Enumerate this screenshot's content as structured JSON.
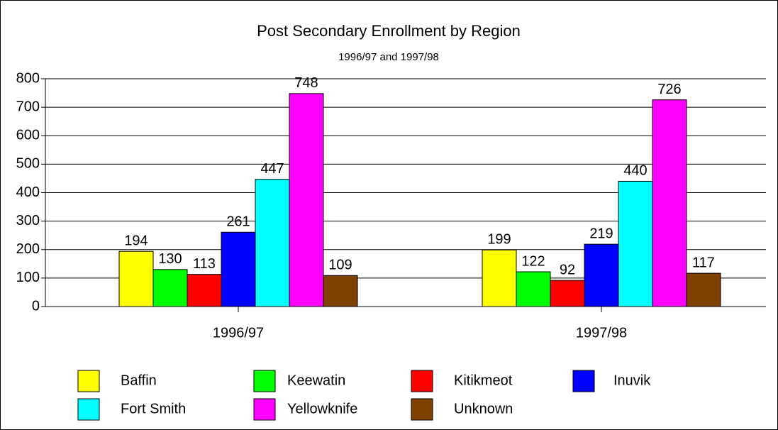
{
  "chart_data": {
    "type": "bar",
    "title": "Post Secondary Enrollment by Region",
    "subtitle": "1996/97 and 1997/98",
    "categories": [
      "1996/97",
      "1997/98"
    ],
    "series": [
      {
        "name": "Baffin",
        "color": "#ffff00",
        "values": [
          194,
          199
        ]
      },
      {
        "name": "Keewatin",
        "color": "#00ff00",
        "values": [
          130,
          122
        ]
      },
      {
        "name": "Kitikmeot",
        "color": "#ff0000",
        "values": [
          113,
          92
        ]
      },
      {
        "name": "Inuvik",
        "color": "#0000ff",
        "values": [
          261,
          219
        ]
      },
      {
        "name": "Fort Smith",
        "color": "#00ffff",
        "values": [
          447,
          440
        ]
      },
      {
        "name": "Yellowknife",
        "color": "#ff00ff",
        "values": [
          748,
          726
        ]
      },
      {
        "name": "Unknown",
        "color": "#804000",
        "values": [
          109,
          117
        ]
      }
    ],
    "ylim": [
      0,
      800
    ],
    "yticks": [
      0,
      100,
      200,
      300,
      400,
      500,
      600,
      700,
      800
    ],
    "grid": true,
    "legend": "bottom"
  }
}
